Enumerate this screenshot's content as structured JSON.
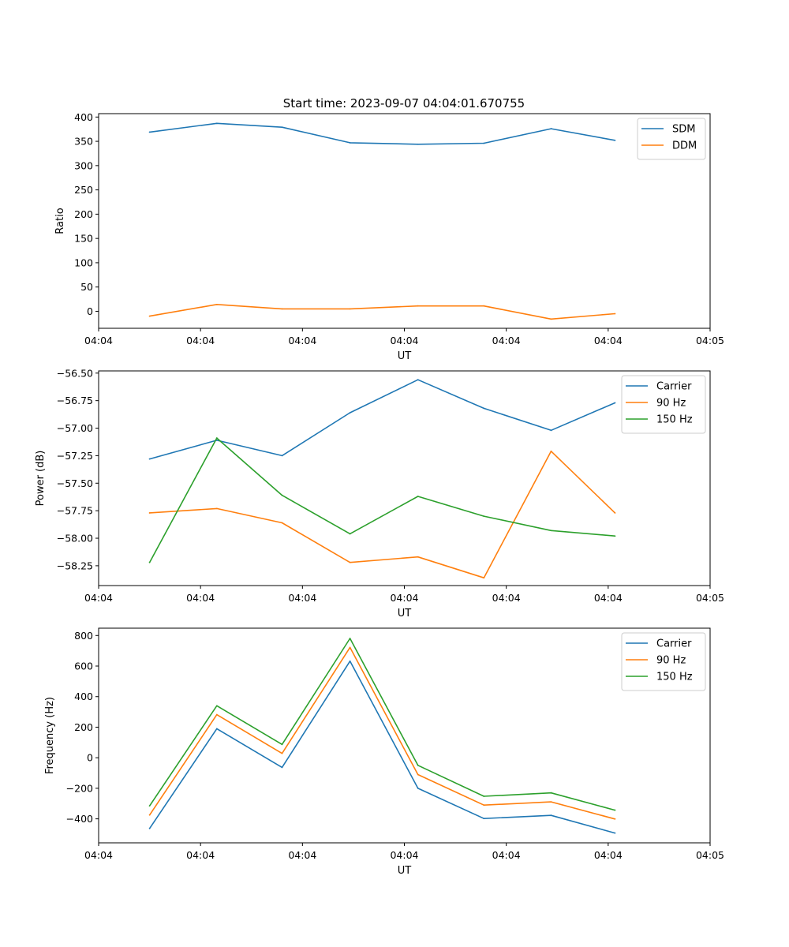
{
  "title": "Start time: 2023-09-07 04:04:01.670755",
  "colors": {
    "blue": "#1f77b4",
    "orange": "#ff7f0e",
    "green": "#2ca02c"
  },
  "chart_data": [
    {
      "type": "line",
      "xlabel": "UT",
      "ylabel": "Ratio",
      "xlim": [
        0,
        9
      ],
      "ylim": [
        -35,
        407
      ],
      "yticks": [
        0,
        50,
        100,
        150,
        200,
        250,
        300,
        350,
        400
      ],
      "ytick_labels": [
        "0",
        "50",
        "100",
        "150",
        "200",
        "250",
        "300",
        "350",
        "400"
      ],
      "xticks": [
        0,
        1.5,
        3,
        4.5,
        6,
        7.5,
        9
      ],
      "xtick_labels": [
        "04:04",
        "04:04",
        "04:04",
        "04:04",
        "04:04",
        "04:04",
        "04:05"
      ],
      "x": [
        0.75,
        1.74,
        2.7,
        3.7,
        4.7,
        5.67,
        6.66,
        7.6
      ],
      "legend": "top-right",
      "series": [
        {
          "name": "SDM",
          "color": "#1f77b4",
          "values": [
            369,
            387,
            379,
            347,
            344,
            346,
            376,
            352
          ]
        },
        {
          "name": "DDM",
          "color": "#ff7f0e",
          "values": [
            -10,
            14,
            5,
            5,
            11,
            11,
            -16,
            -5
          ]
        }
      ]
    },
    {
      "type": "line",
      "xlabel": "UT",
      "ylabel": "Power (dB)",
      "xlim": [
        0,
        9
      ],
      "ylim": [
        -58.43,
        -56.48
      ],
      "yticks": [
        -58.25,
        -58.0,
        -57.75,
        -57.5,
        -57.25,
        -57.0,
        -56.75,
        -56.5
      ],
      "ytick_labels": [
        "−58.25",
        "−58.00",
        "−57.75",
        "−57.50",
        "−57.25",
        "−57.00",
        "−56.75",
        "−56.50"
      ],
      "xticks": [
        0,
        1.5,
        3,
        4.5,
        6,
        7.5,
        9
      ],
      "xtick_labels": [
        "04:04",
        "04:04",
        "04:04",
        "04:04",
        "04:04",
        "04:04",
        "04:05"
      ],
      "x": [
        0.75,
        1.74,
        2.7,
        3.7,
        4.7,
        5.67,
        6.66,
        7.6
      ],
      "legend": "top-right",
      "series": [
        {
          "name": "Carrier",
          "color": "#1f77b4",
          "values": [
            -57.28,
            -57.11,
            -57.25,
            -56.86,
            -56.56,
            -56.82,
            -57.02,
            -56.77
          ]
        },
        {
          "name": "90 Hz",
          "color": "#ff7f0e",
          "values": [
            -57.77,
            -57.73,
            -57.86,
            -58.22,
            -58.17,
            -58.36,
            -57.21,
            -57.77
          ]
        },
        {
          "name": "150 Hz",
          "color": "#2ca02c",
          "values": [
            -58.22,
            -57.09,
            -57.61,
            -57.96,
            -57.62,
            -57.8,
            -57.93,
            -57.98
          ]
        }
      ]
    },
    {
      "type": "line",
      "xlabel": "UT",
      "ylabel": "Frequency (Hz)",
      "xlim": [
        0,
        9
      ],
      "ylim": [
        -557,
        848
      ],
      "yticks": [
        -400,
        -200,
        0,
        200,
        400,
        600,
        800
      ],
      "ytick_labels": [
        "−400",
        "−200",
        "0",
        "200",
        "400",
        "600",
        "800"
      ],
      "xticks": [
        0,
        1.5,
        3,
        4.5,
        6,
        7.5,
        9
      ],
      "xtick_labels": [
        "04:04",
        "04:04",
        "04:04",
        "04:04",
        "04:04",
        "04:04",
        "04:05"
      ],
      "x": [
        0.75,
        1.74,
        2.7,
        3.7,
        4.7,
        5.67,
        6.66,
        7.6
      ],
      "legend": "top-right",
      "series": [
        {
          "name": "Carrier",
          "color": "#1f77b4",
          "values": [
            -463,
            190,
            -63,
            632,
            -200,
            -398,
            -377,
            -493
          ]
        },
        {
          "name": "90 Hz",
          "color": "#ff7f0e",
          "values": [
            -375,
            282,
            28,
            722,
            -110,
            -310,
            -289,
            -401
          ]
        },
        {
          "name": "150 Hz",
          "color": "#2ca02c",
          "values": [
            -315,
            340,
            87,
            781,
            -50,
            -252,
            -230,
            -343
          ]
        }
      ]
    }
  ]
}
